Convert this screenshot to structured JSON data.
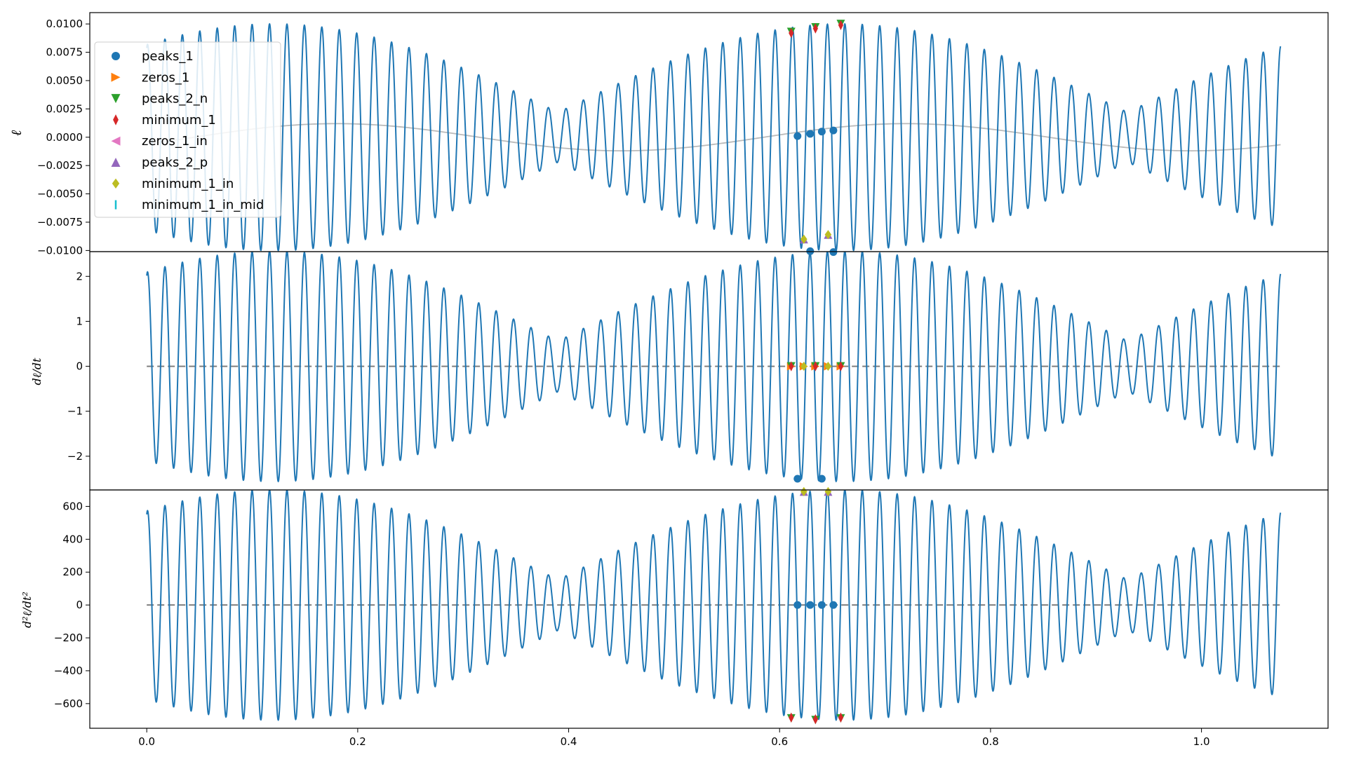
{
  "figure": {
    "background": "#ffffff"
  },
  "x_ticks": [
    "0.0",
    "0.2",
    "0.4",
    "0.6",
    "0.8",
    "1.0"
  ],
  "legend": {
    "placement": "upper-left of top panel",
    "items": [
      {
        "label": "peaks_1",
        "marker": "circle",
        "color": "#1f77b4"
      },
      {
        "label": "zeros_1",
        "marker": "triangle-right",
        "color": "#ff7f0e"
      },
      {
        "label": "peaks_2_n",
        "marker": "triangle-down",
        "color": "#2ca02c"
      },
      {
        "label": "minimum_1",
        "marker": "thin-diamond",
        "color": "#d62728"
      },
      {
        "label": "zeros_1_in",
        "marker": "triangle-left",
        "color": "#e377c2"
      },
      {
        "label": "peaks_2_p",
        "marker": "triangle-up",
        "color": "#9467bd"
      },
      {
        "label": "minimum_1_in",
        "marker": "diamond",
        "color": "#bcbd22"
      },
      {
        "label": "minimum_1_in_mid",
        "marker": "vline",
        "color": "#17becf"
      }
    ]
  },
  "chart_data": [
    {
      "type": "line",
      "ylabel": "ℓ",
      "xlim": [
        -0.054,
        1.12
      ],
      "ylim": [
        -0.0101,
        0.011
      ],
      "y_ticks": [
        "0.0100",
        "0.0075",
        "0.0050",
        "0.0025",
        "0.0000",
        "−0.0025",
        "−0.0050",
        "−0.0075",
        "−0.0100"
      ],
      "y_tick_values": [
        0.01,
        0.0075,
        0.005,
        0.0025,
        0,
        -0.0025,
        -0.005,
        -0.0075,
        -0.01
      ],
      "signal": {
        "color": "#1f77b4",
        "amplitude": 0.01,
        "x_range": [
          0,
          1.075
        ],
        "beat_nodes": [
          0.35,
          0.89
        ],
        "cycles_per_unit": 60.5,
        "phase": 1.3
      },
      "envelope_line": {
        "color": "#bbbbbb",
        "amplitude": 0.0012
      },
      "points": [
        {
          "series": "peaks_1",
          "x": [
            0.617,
            0.629,
            0.64,
            0.651
          ],
          "y": [
            0.0001,
            0.0003,
            0.0005,
            0.0006
          ]
        },
        {
          "series": "peaks_2_n",
          "x": [
            0.611,
            0.634,
            0.658
          ],
          "y": [
            0.0093,
            0.0097,
            0.01
          ]
        },
        {
          "series": "minimum_1",
          "x": [
            0.611,
            0.634,
            0.658
          ],
          "y": [
            0.0092,
            0.0096,
            0.0099
          ]
        },
        {
          "series": "peaks_2_p",
          "x": [
            0.623,
            0.646
          ],
          "y": [
            -0.009,
            -0.0086
          ]
        },
        {
          "series": "minimum_1_in",
          "x": [
            0.623,
            0.646
          ],
          "y": [
            -0.009,
            -0.0086
          ]
        }
      ]
    },
    {
      "type": "line",
      "ylabel": "dℓ/dt",
      "xlim": [
        -0.054,
        1.12
      ],
      "ylim": [
        -2.75,
        2.55
      ],
      "y_ticks": [
        "2",
        "1",
        "0",
        "−1",
        "−2"
      ],
      "y_tick_values": [
        2,
        1,
        0,
        -1,
        -2
      ],
      "signal": {
        "color": "#1f77b4",
        "amplitude": 2.56,
        "x_range": [
          0,
          1.075
        ],
        "beat_nodes": [
          0.35,
          0.89
        ],
        "cycles_per_unit": 60.5,
        "phase": 1.3
      },
      "zero_line": {
        "color": "#7f7f7f",
        "style": "dashed"
      },
      "points": [
        {
          "series": "peaks_1",
          "x": [
            0.617,
            0.629,
            0.64,
            0.651
          ],
          "y": [
            -2.5,
            2.56,
            -2.5,
            2.54
          ]
        },
        {
          "series": "zeros_1",
          "x": [
            0.611,
            0.623,
            0.634,
            0.646,
            0.658
          ],
          "y": [
            0,
            0,
            0,
            0,
            0
          ]
        },
        {
          "series": "peaks_2_n",
          "x": [
            0.611,
            0.634,
            0.658
          ],
          "y": [
            0,
            0,
            0
          ]
        },
        {
          "series": "minimum_1",
          "x": [
            0.611,
            0.634,
            0.658
          ],
          "y": [
            0,
            0,
            0
          ]
        },
        {
          "series": "minimum_1_in",
          "x": [
            0.623,
            0.646
          ],
          "y": [
            0,
            0
          ]
        }
      ]
    },
    {
      "type": "line",
      "ylabel": "d²ℓ/dt²",
      "xlim": [
        -0.054,
        1.12
      ],
      "ylim": [
        -750,
        700
      ],
      "y_ticks": [
        "600",
        "400",
        "200",
        "0",
        "−200",
        "−400",
        "−600"
      ],
      "y_tick_values": [
        600,
        400,
        200,
        0,
        -200,
        -400,
        -600
      ],
      "signal": {
        "color": "#1f77b4",
        "amplitude": 700,
        "x_range": [
          0,
          1.075
        ],
        "beat_nodes": [
          0.35,
          0.89
        ],
        "cycles_per_unit": 60.5,
        "phase": 1.3
      },
      "zero_line": {
        "color": "#7f7f7f",
        "style": "dashed"
      },
      "points": [
        {
          "series": "peaks_1",
          "x": [
            0.617,
            0.629,
            0.64,
            0.651
          ],
          "y": [
            0,
            0,
            0,
            0
          ]
        },
        {
          "series": "peaks_2_n",
          "x": [
            0.611,
            0.634,
            0.658
          ],
          "y": [
            -690,
            -700,
            -690
          ]
        },
        {
          "series": "minimum_1",
          "x": [
            0.611,
            0.634,
            0.658
          ],
          "y": [
            -685,
            -695,
            -685
          ]
        },
        {
          "series": "peaks_2_p",
          "x": [
            0.623,
            0.646
          ],
          "y": [
            690,
            690
          ]
        },
        {
          "series": "minimum_1_in",
          "x": [
            0.623,
            0.646
          ],
          "y": [
            690,
            690
          ]
        }
      ]
    }
  ]
}
